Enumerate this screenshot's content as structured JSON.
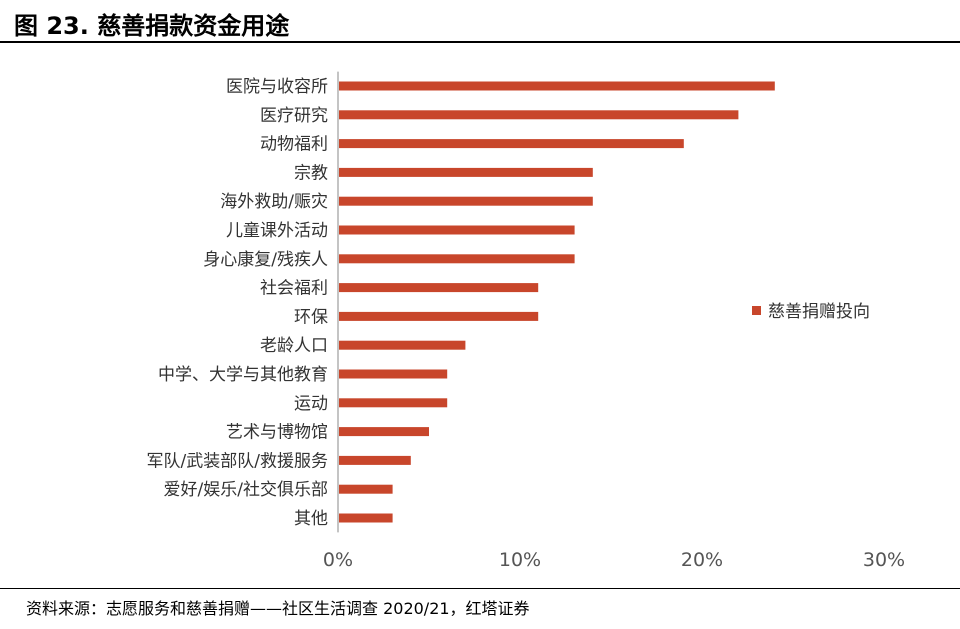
{
  "header": {
    "title": "图 23. 慈善捐款资金用途"
  },
  "footer": {
    "source": "资料来源：志愿服务和慈善捐赠——社区生活调查 2020/21，红塔证券"
  },
  "chart_data": {
    "type": "bar",
    "orientation": "horizontal",
    "categories": [
      "医院与收容所",
      "医疗研究",
      "动物福利",
      "宗教",
      "海外救助/赈灾",
      "儿童课外活动",
      "身心康复/残疾人",
      "社会福利",
      "环保",
      "老龄人口",
      "中学、大学与其他教育",
      "运动",
      "艺术与博物馆",
      "军队/武装部队/救援服务",
      "爱好/娱乐/社交俱乐部",
      "其他"
    ],
    "series": [
      {
        "name": "慈善捐赠投向",
        "values": [
          24,
          22,
          19,
          14,
          14,
          13,
          13,
          11,
          11,
          7,
          6,
          6,
          5,
          4,
          3,
          3
        ],
        "color": "#C8462B"
      }
    ],
    "xlim": [
      0,
      30
    ],
    "xticks": [
      0,
      10,
      20,
      30
    ],
    "tick_labels": [
      "0%",
      "10%",
      "20%",
      "30%"
    ],
    "grid": false,
    "legend": "right"
  }
}
